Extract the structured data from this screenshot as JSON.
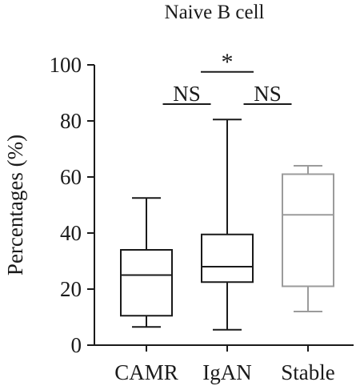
{
  "chart_data": {
    "type": "box",
    "title": "Naive B cell",
    "ylabel": "Percentages (%)",
    "xlabel": "",
    "ylim": [
      0,
      100
    ],
    "yticks": [
      "0",
      "20",
      "40",
      "60",
      "80",
      "100"
    ],
    "categories": [
      "CAMR",
      "IgAN",
      "Stable"
    ],
    "boxes": [
      {
        "name": "CAMR",
        "min": 6.5,
        "q1": 10.5,
        "median": 25,
        "q3": 34,
        "max": 52.5,
        "color": "#1a1a1a"
      },
      {
        "name": "IgAN",
        "min": 5.5,
        "q1": 22.5,
        "median": 28,
        "q3": 39.5,
        "max": 80.5,
        "color": "#1a1a1a"
      },
      {
        "name": "Stable",
        "min": 12,
        "q1": 21,
        "median": 46.5,
        "q3": 61,
        "max": 64,
        "color": "#9b9b9b"
      }
    ],
    "significance": [
      {
        "between": [
          "CAMR",
          "IgAN"
        ],
        "label": "NS",
        "y": 86
      },
      {
        "between": [
          "CAMR",
          "Stable"
        ],
        "label": "*",
        "y": 97.5
      },
      {
        "between": [
          "IgAN",
          "Stable"
        ],
        "label": "NS",
        "y": 86
      }
    ],
    "grid": false,
    "legend": "none"
  }
}
